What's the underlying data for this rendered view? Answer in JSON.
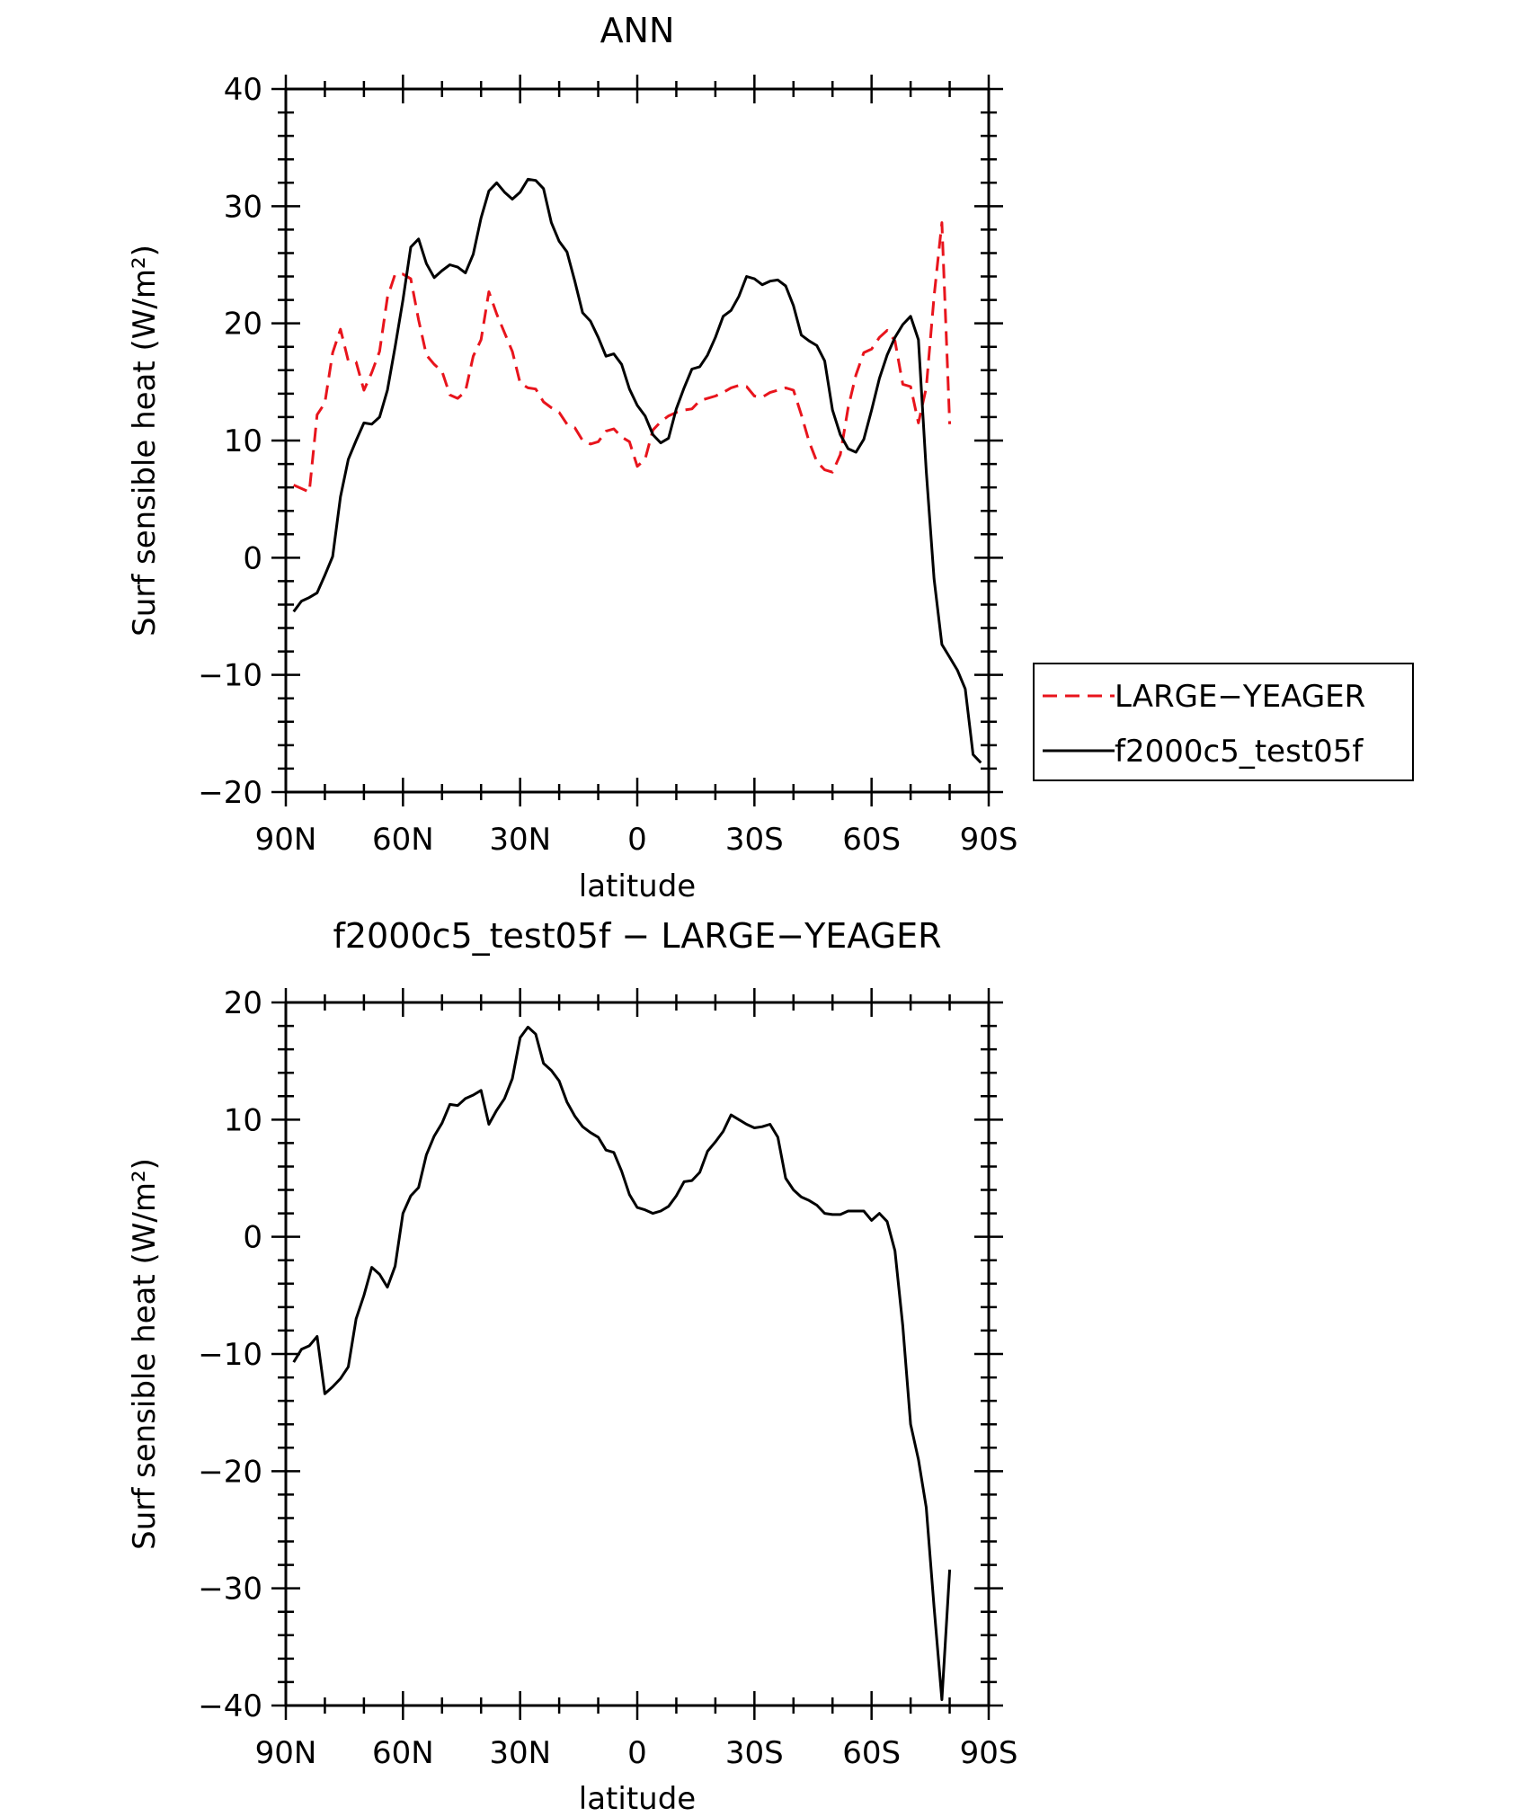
{
  "chart_data": [
    {
      "type": "line",
      "title": "ANN",
      "xlabel": "latitude",
      "ylabel": "Surf sensible heat (W/m²)",
      "xlim": [
        -90,
        90
      ],
      "ylim": [
        -20,
        40
      ],
      "x_ticks": [
        {
          "value": -90,
          "label": "90N"
        },
        {
          "value": -60,
          "label": "60N"
        },
        {
          "value": -30,
          "label": "30N"
        },
        {
          "value": 0,
          "label": "0"
        },
        {
          "value": 30,
          "label": "30S"
        },
        {
          "value": 60,
          "label": "60S"
        },
        {
          "value": 90,
          "label": "90S"
        }
      ],
      "y_ticks": [
        {
          "value": 40,
          "label": "40"
        },
        {
          "value": 30,
          "label": "30"
        },
        {
          "value": 20,
          "label": "20"
        },
        {
          "value": 10,
          "label": "10"
        },
        {
          "value": 0,
          "label": "0"
        },
        {
          "value": -10,
          "label": "−10"
        },
        {
          "value": -20,
          "label": "−20"
        }
      ],
      "legend_position": "right",
      "series": [
        {
          "name": "LARGE−YEAGER",
          "color": "#e8141c",
          "style": "dashed",
          "x": [
            -88,
            -86,
            -84,
            -82,
            -80,
            -78,
            -76,
            -74,
            -72,
            -70,
            -68,
            -66,
            -64,
            -62,
            -60,
            -58,
            -56,
            -54,
            -52,
            -50,
            -48,
            -46,
            -44,
            -42,
            -40,
            -38,
            -36,
            -34,
            -32,
            -30,
            -28,
            -26,
            -24,
            -22,
            -20,
            -18,
            -16,
            -14,
            -12,
            -10,
            -8,
            -6,
            -4,
            -2,
            0,
            2,
            4,
            6,
            8,
            10,
            12,
            14,
            16,
            18,
            20,
            22,
            24,
            26,
            28,
            30,
            32,
            34,
            36,
            38,
            40,
            42,
            44,
            46,
            48,
            50,
            52,
            54,
            56,
            58,
            60,
            62,
            64,
            66,
            68,
            70,
            72,
            74,
            76,
            78,
            80
          ],
          "y": [
            6.2,
            5.9,
            5.6,
            12.2,
            13.2,
            17.5,
            19.5,
            16.8,
            16.7,
            14.3,
            15.8,
            17.6,
            22.2,
            24.2,
            24.2,
            23.8,
            20.3,
            17.3,
            16.5,
            15.9,
            13.9,
            13.6,
            14.2,
            17.2,
            18.6,
            22.7,
            20.8,
            19.2,
            17.6,
            14.9,
            14.5,
            14.4,
            13.3,
            12.8,
            12.4,
            11.4,
            11.1,
            10.0,
            9.7,
            9.9,
            10.8,
            11.0,
            10.3,
            9.9,
            7.8,
            8.4,
            10.9,
            11.6,
            12.1,
            12.4,
            12.6,
            12.7,
            13.4,
            13.6,
            13.8,
            14.1,
            14.5,
            14.7,
            14.6,
            13.8,
            13.7,
            14.1,
            14.3,
            14.5,
            14.3,
            12.2,
            9.9,
            8.2,
            7.5,
            7.3,
            8.8,
            12.8,
            15.6,
            17.5,
            17.8,
            18.8,
            19.4,
            18.5,
            14.8,
            14.6,
            11.5,
            14.5,
            22.3,
            28.6,
            11.4
          ]
        },
        {
          "name": "f2000c5_test05f",
          "color": "#000000",
          "style": "solid",
          "x": [
            -88,
            -86,
            -84,
            -82,
            -80,
            -78,
            -76,
            -74,
            -72,
            -70,
            -68,
            -66,
            -64,
            -62,
            -60,
            -58,
            -56,
            -54,
            -52,
            -50,
            -48,
            -46,
            -44,
            -42,
            -40,
            -38,
            -36,
            -34,
            -32,
            -30,
            -28,
            -26,
            -24,
            -22,
            -20,
            -18,
            -16,
            -14,
            -12,
            -10,
            -8,
            -6,
            -4,
            -2,
            0,
            2,
            4,
            6,
            8,
            10,
            12,
            14,
            16,
            18,
            20,
            22,
            24,
            26,
            28,
            30,
            32,
            34,
            36,
            38,
            40,
            42,
            44,
            46,
            48,
            50,
            52,
            54,
            56,
            58,
            60,
            62,
            64,
            66,
            68,
            70,
            72,
            74,
            76,
            78,
            80,
            82,
            84,
            86,
            88
          ],
          "y": [
            -4.6,
            -3.7,
            -3.4,
            -3.0,
            -1.5,
            0.1,
            5.2,
            8.4,
            10.0,
            11.5,
            11.4,
            12.0,
            14.3,
            18.0,
            22.0,
            26.5,
            27.2,
            25.1,
            23.9,
            24.5,
            25.0,
            24.8,
            24.3,
            25.9,
            29.0,
            31.3,
            32.0,
            31.2,
            30.6,
            31.2,
            32.3,
            32.2,
            31.5,
            28.6,
            27.0,
            26.1,
            23.6,
            20.9,
            20.2,
            18.8,
            17.2,
            17.4,
            16.5,
            14.4,
            13.0,
            12.1,
            10.5,
            9.8,
            10.2,
            12.7,
            14.5,
            16.1,
            16.3,
            17.3,
            18.8,
            20.6,
            21.1,
            22.3,
            24.0,
            23.8,
            23.3,
            23.6,
            23.7,
            23.2,
            21.5,
            19.0,
            18.5,
            18.1,
            16.8,
            12.6,
            10.5,
            9.3,
            9.0,
            10.1,
            12.6,
            15.3,
            17.3,
            18.8,
            19.9,
            20.6,
            18.6,
            7.4,
            -1.8,
            -7.4,
            -8.5,
            -9.6,
            -11.2,
            -16.8,
            -17.5
          ]
        }
      ]
    },
    {
      "type": "line",
      "title": "f2000c5_test05f − LARGE−YEAGER",
      "xlabel": "latitude",
      "ylabel": "Surf sensible heat (W/m²)",
      "xlim": [
        -90,
        90
      ],
      "ylim": [
        -40,
        20
      ],
      "x_ticks": [
        {
          "value": -90,
          "label": "90N"
        },
        {
          "value": -60,
          "label": "60N"
        },
        {
          "value": -30,
          "label": "30N"
        },
        {
          "value": 0,
          "label": "0"
        },
        {
          "value": 30,
          "label": "30S"
        },
        {
          "value": 60,
          "label": "60S"
        },
        {
          "value": 90,
          "label": "90S"
        }
      ],
      "y_ticks": [
        {
          "value": 20,
          "label": "20"
        },
        {
          "value": 10,
          "label": "10"
        },
        {
          "value": 0,
          "label": "0"
        },
        {
          "value": -10,
          "label": "−10"
        },
        {
          "value": -20,
          "label": "−20"
        },
        {
          "value": -30,
          "label": "−30"
        },
        {
          "value": -40,
          "label": "−40"
        }
      ],
      "series": [
        {
          "name": "",
          "color": "#000000",
          "style": "solid",
          "x": [
            -88,
            -86,
            -84,
            -82,
            -80,
            -78,
            -76,
            -74,
            -72,
            -70,
            -68,
            -66,
            -64,
            -62,
            -60,
            -58,
            -56,
            -54,
            -52,
            -50,
            -48,
            -46,
            -44,
            -42,
            -40,
            -38,
            -36,
            -34,
            -32,
            -30,
            -28,
            -26,
            -24,
            -22,
            -20,
            -18,
            -16,
            -14,
            -12,
            -10,
            -8,
            -6,
            -4,
            -2,
            0,
            2,
            4,
            6,
            8,
            10,
            12,
            14,
            16,
            18,
            20,
            22,
            24,
            26,
            28,
            30,
            32,
            34,
            36,
            38,
            40,
            42,
            44,
            46,
            48,
            50,
            52,
            54,
            56,
            58,
            60,
            62,
            64,
            66,
            68,
            70,
            72,
            74,
            76,
            78,
            80
          ],
          "y": [
            -10.7,
            -9.6,
            -9.3,
            -8.5,
            -13.4,
            -12.8,
            -12.1,
            -11.1,
            -7.0,
            -5.0,
            -2.6,
            -3.2,
            -4.3,
            -2.5,
            2.0,
            3.5,
            4.2,
            7.0,
            8.6,
            9.7,
            11.3,
            11.2,
            11.8,
            12.1,
            12.5,
            9.6,
            10.8,
            11.8,
            13.5,
            17.0,
            17.9,
            17.3,
            14.8,
            14.2,
            13.3,
            11.5,
            10.3,
            9.4,
            8.9,
            8.5,
            7.4,
            7.2,
            5.6,
            3.6,
            2.5,
            2.3,
            2.0,
            2.2,
            2.6,
            3.5,
            4.7,
            4.8,
            5.5,
            7.3,
            8.1,
            9.0,
            10.4,
            10.0,
            9.6,
            9.3,
            9.4,
            9.6,
            8.5,
            5.0,
            4.0,
            3.4,
            3.1,
            2.7,
            2.0,
            1.9,
            1.9,
            2.2,
            2.2,
            2.2,
            1.4,
            2.0,
            1.3,
            -1.2,
            -7.6,
            -16.0,
            -19.0,
            -23.1,
            -31.6,
            -39.5,
            -28.4
          ]
        }
      ]
    }
  ]
}
